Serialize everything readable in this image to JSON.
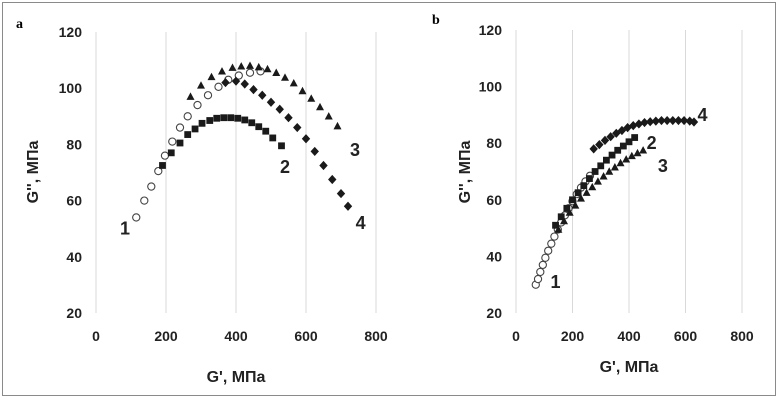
{
  "chart_data": [
    {
      "type": "scatter",
      "panel_label": "a",
      "xlabel": "G', МПа",
      "ylabel": "G'', МПа",
      "xlim": [
        0,
        800
      ],
      "ylim": [
        20,
        120
      ],
      "xticks": [
        0,
        200,
        400,
        600,
        800
      ],
      "yticks": [
        20,
        40,
        60,
        80,
        100,
        120
      ],
      "grid": "vertical",
      "series": [
        {
          "name": "1",
          "marker": "open-circle",
          "label_at": [
            83,
            50
          ],
          "x": [
            115,
            138,
            158,
            178,
            197,
            218,
            240,
            262,
            290,
            320,
            350,
            378,
            408,
            440,
            470
          ],
          "y": [
            54,
            60,
            65,
            70.5,
            76,
            81,
            86,
            90,
            94,
            97.5,
            100.5,
            103,
            104.5,
            105.5,
            106
          ]
        },
        {
          "name": "2",
          "marker": "square",
          "label_at": [
            540,
            72
          ],
          "x": [
            190,
            215,
            240,
            262,
            283,
            303,
            325,
            345,
            365,
            385,
            405,
            425,
            445,
            465,
            485,
            505,
            530
          ],
          "y": [
            72.5,
            77,
            80.5,
            83.5,
            85.5,
            87.5,
            88.5,
            89.3,
            89.5,
            89.5,
            89.3,
            88.7,
            87.7,
            86.3,
            84.7,
            82.3,
            79.5
          ]
        },
        {
          "name": "3",
          "marker": "triangle",
          "label_at": [
            740,
            78
          ],
          "x": [
            270,
            300,
            330,
            360,
            390,
            415,
            440,
            465,
            490,
            515,
            540,
            565,
            590,
            615,
            640,
            665,
            690
          ],
          "y": [
            97,
            101,
            104,
            106,
            107.3,
            107.8,
            108,
            107.5,
            106.8,
            105.5,
            103.8,
            101.8,
            99,
            96.3,
            93.3,
            90,
            86.5
          ]
        },
        {
          "name": "4",
          "marker": "diamond",
          "label_at": [
            756,
            52
          ],
          "x": [
            370,
            400,
            425,
            450,
            475,
            500,
            525,
            550,
            575,
            600,
            625,
            650,
            675,
            700,
            720
          ],
          "y": [
            102,
            102.5,
            101.5,
            99.5,
            97.5,
            95,
            92.5,
            89.5,
            86,
            82,
            77.5,
            72.5,
            67.5,
            62.5,
            58
          ]
        }
      ]
    },
    {
      "type": "scatter",
      "panel_label": "b",
      "xlabel": "G', МПа",
      "ylabel": "G'', МПа",
      "xlim": [
        0,
        800
      ],
      "ylim": [
        20,
        120
      ],
      "xticks": [
        0,
        200,
        400,
        600,
        800
      ],
      "yticks": [
        20,
        40,
        60,
        80,
        100,
        120
      ],
      "grid": "vertical",
      "series": [
        {
          "name": "1",
          "marker": "open-circle",
          "label_at": [
            140,
            31
          ],
          "x": [
            70,
            78,
            86,
            95,
            104,
            114,
            125,
            136,
            148,
            160,
            173,
            186,
            200,
            215,
            230,
            246,
            262
          ],
          "y": [
            30,
            32,
            34.5,
            37,
            39.5,
            42,
            44.5,
            47,
            49.5,
            52,
            54.5,
            57,
            59.5,
            62,
            64.3,
            66.5,
            68.5
          ]
        },
        {
          "name": "2",
          "marker": "square",
          "label_at": [
            480,
            80
          ],
          "x": [
            140,
            160,
            180,
            200,
            220,
            240,
            260,
            280,
            300,
            320,
            340,
            360,
            380,
            400,
            420
          ],
          "y": [
            51,
            54,
            57,
            60,
            62.5,
            65,
            67.5,
            70,
            72,
            74,
            75.8,
            77.5,
            79,
            80.5,
            82
          ]
        },
        {
          "name": "3",
          "marker": "triangle",
          "label_at": [
            520,
            72
          ],
          "x": [
            150,
            170,
            190,
            210,
            230,
            250,
            270,
            290,
            310,
            330,
            350,
            370,
            390,
            410,
            430,
            450
          ],
          "y": [
            49.5,
            52.5,
            55.5,
            58,
            60.5,
            62.5,
            64.5,
            66.5,
            68.3,
            70,
            71.5,
            73,
            74.3,
            75.5,
            76.5,
            77.5
          ]
        },
        {
          "name": "4",
          "marker": "diamond",
          "label_at": [
            660,
            90
          ],
          "x": [
            275,
            295,
            315,
            335,
            355,
            375,
            395,
            415,
            435,
            455,
            475,
            495,
            515,
            535,
            555,
            575,
            595,
            615,
            630
          ],
          "y": [
            78,
            79.5,
            81,
            82.3,
            83.5,
            84.5,
            85.5,
            86.2,
            86.8,
            87.3,
            87.6,
            87.8,
            88,
            88,
            88,
            88,
            88,
            87.8,
            87.5
          ]
        }
      ]
    }
  ]
}
